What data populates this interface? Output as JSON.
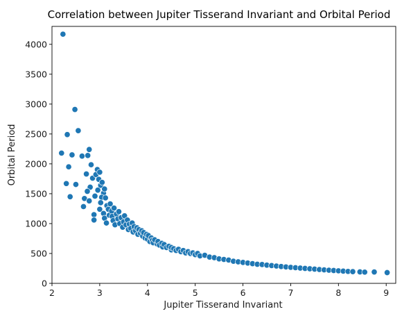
{
  "chart_data": {
    "type": "scatter",
    "title": "Correlation between Jupiter Tisserand Invariant and Orbital Period",
    "xlabel": "Jupiter Tisserand Invariant",
    "ylabel": "Orbital Period",
    "xlim": [
      2.0,
      9.2
    ],
    "ylim": [
      0,
      4300
    ],
    "xticks": [
      2,
      3,
      4,
      5,
      6,
      7,
      8,
      9
    ],
    "yticks": [
      0,
      500,
      1000,
      1500,
      2000,
      2500,
      3000,
      3500,
      4000
    ],
    "grid": false,
    "legend": "none",
    "marker_color": "#1f77b4",
    "series": [
      {
        "points": [
          [
            2.23,
            4170
          ],
          [
            2.48,
            2910
          ],
          [
            2.55,
            2555
          ],
          [
            2.32,
            2490
          ],
          [
            2.2,
            2180
          ],
          [
            2.42,
            2150
          ],
          [
            2.63,
            2130
          ],
          [
            2.75,
            2140
          ],
          [
            2.78,
            2240
          ],
          [
            2.35,
            1950
          ],
          [
            2.3,
            1670
          ],
          [
            2.5,
            1655
          ],
          [
            2.38,
            1450
          ],
          [
            2.68,
            1420
          ],
          [
            2.66,
            1285
          ],
          [
            2.82,
            1985
          ],
          [
            2.72,
            1830
          ],
          [
            2.85,
            1760
          ],
          [
            2.8,
            1610
          ],
          [
            2.74,
            1540
          ],
          [
            2.78,
            1380
          ],
          [
            2.9,
            1460
          ],
          [
            2.88,
            1150
          ],
          [
            2.88,
            1060
          ],
          [
            2.95,
            1905
          ],
          [
            2.92,
            1820
          ],
          [
            2.98,
            1740
          ],
          [
            3.0,
            1860
          ],
          [
            3.02,
            1640
          ],
          [
            2.96,
            1560
          ],
          [
            3.05,
            1690
          ],
          [
            3.08,
            1510
          ],
          [
            3.04,
            1440
          ],
          [
            3.1,
            1580
          ],
          [
            3.02,
            1350
          ],
          [
            3.12,
            1430
          ],
          [
            3.0,
            1240
          ],
          [
            3.15,
            1300
          ],
          [
            3.08,
            1170
          ],
          [
            3.18,
            1240
          ],
          [
            3.1,
            1090
          ],
          [
            3.2,
            1140
          ],
          [
            3.14,
            1010
          ],
          [
            3.22,
            1330
          ],
          [
            3.25,
            1210
          ],
          [
            3.26,
            1120
          ],
          [
            3.3,
            1260
          ],
          [
            3.28,
            1050
          ],
          [
            3.32,
            980
          ],
          [
            3.35,
            1160
          ],
          [
            3.38,
            1080
          ],
          [
            3.4,
            1200
          ],
          [
            3.42,
            1000
          ],
          [
            3.45,
            1100
          ],
          [
            3.48,
            940
          ],
          [
            3.5,
            1030
          ],
          [
            3.52,
            1130
          ],
          [
            3.55,
            980
          ],
          [
            3.58,
            1060
          ],
          [
            3.6,
            900
          ],
          [
            3.62,
            990
          ],
          [
            3.65,
            920
          ],
          [
            3.68,
            1010
          ],
          [
            3.7,
            860
          ],
          [
            3.72,
            950
          ],
          [
            3.75,
            880
          ],
          [
            3.78,
            930
          ],
          [
            3.8,
            820
          ],
          [
            3.82,
            900
          ],
          [
            3.85,
            840
          ],
          [
            3.88,
            880
          ],
          [
            3.9,
            790
          ],
          [
            3.92,
            850
          ],
          [
            3.95,
            760
          ],
          [
            3.98,
            820
          ],
          [
            4.0,
            740
          ],
          [
            4.02,
            800
          ],
          [
            4.05,
            700
          ],
          [
            4.08,
            760
          ],
          [
            4.1,
            720
          ],
          [
            4.12,
            680
          ],
          [
            4.15,
            730
          ],
          [
            4.2,
            660
          ],
          [
            4.22,
            700
          ],
          [
            4.25,
            640
          ],
          [
            4.3,
            670
          ],
          [
            4.32,
            610
          ],
          [
            4.35,
            650
          ],
          [
            4.4,
            600
          ],
          [
            4.45,
            620
          ],
          [
            4.5,
            560
          ],
          [
            4.5,
            600
          ],
          [
            4.55,
            580
          ],
          [
            4.6,
            550
          ],
          [
            4.65,
            570
          ],
          [
            4.7,
            530
          ],
          [
            4.75,
            550
          ],
          [
            4.8,
            510
          ],
          [
            4.85,
            530
          ],
          [
            4.9,
            500
          ],
          [
            4.95,
            510
          ],
          [
            5.0,
            480
          ],
          [
            5.05,
            500
          ],
          [
            5.1,
            460
          ],
          [
            5.2,
            470
          ],
          [
            5.3,
            440
          ],
          [
            5.4,
            430
          ],
          [
            5.5,
            410
          ],
          [
            5.6,
            400
          ],
          [
            5.7,
            390
          ],
          [
            5.8,
            370
          ],
          [
            5.9,
            360
          ],
          [
            6.0,
            350
          ],
          [
            6.1,
            340
          ],
          [
            6.2,
            330
          ],
          [
            6.3,
            320
          ],
          [
            6.4,
            315
          ],
          [
            6.5,
            305
          ],
          [
            6.6,
            298
          ],
          [
            6.7,
            290
          ],
          [
            6.8,
            282
          ],
          [
            6.9,
            275
          ],
          [
            7.0,
            268
          ],
          [
            7.1,
            262
          ],
          [
            7.2,
            256
          ],
          [
            7.3,
            250
          ],
          [
            7.4,
            244
          ],
          [
            7.5,
            238
          ],
          [
            7.6,
            232
          ],
          [
            7.7,
            226
          ],
          [
            7.8,
            220
          ],
          [
            7.9,
            215
          ],
          [
            8.0,
            210
          ],
          [
            8.1,
            205
          ],
          [
            8.2,
            200
          ],
          [
            8.3,
            196
          ],
          [
            8.45,
            192
          ],
          [
            8.55,
            188
          ],
          [
            8.75,
            190
          ],
          [
            9.02,
            180
          ]
        ]
      }
    ]
  }
}
